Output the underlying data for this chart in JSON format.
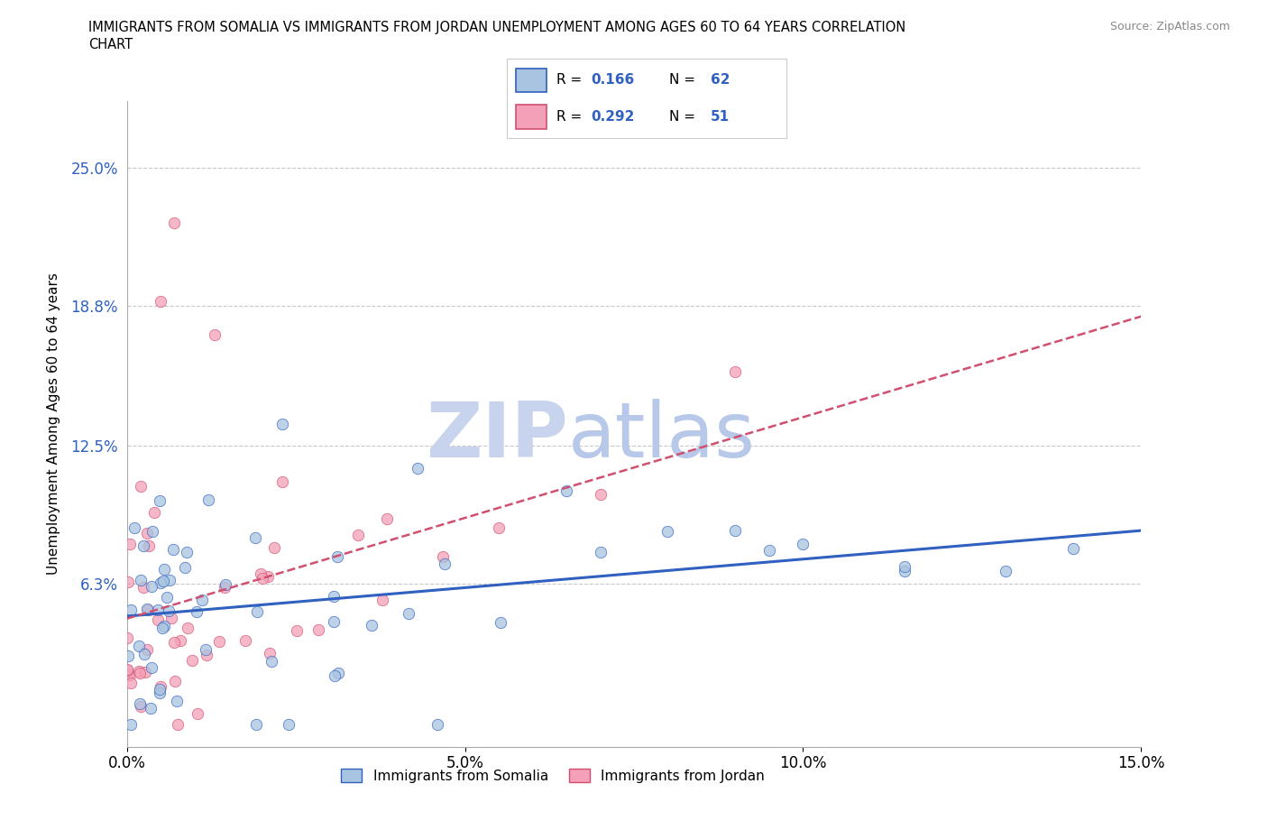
{
  "title_line1": "IMMIGRANTS FROM SOMALIA VS IMMIGRANTS FROM JORDAN UNEMPLOYMENT AMONG AGES 60 TO 64 YEARS CORRELATION",
  "title_line2": "CHART",
  "source": "Source: ZipAtlas.com",
  "ylabel": "Unemployment Among Ages 60 to 64 years",
  "xlim": [
    0.0,
    0.15
  ],
  "ylim": [
    -0.01,
    0.28
  ],
  "yticks": [
    0.063,
    0.125,
    0.188,
    0.25
  ],
  "ytick_labels": [
    "6.3%",
    "12.5%",
    "18.8%",
    "25.0%"
  ],
  "xticks": [
    0.0,
    0.05,
    0.1,
    0.15
  ],
  "xtick_labels": [
    "0.0%",
    "5.0%",
    "10.0%",
    "15.0%"
  ],
  "color_somalia": "#a8c4e0",
  "color_jordan": "#f4a0b8",
  "color_trend_somalia": "#3060c0",
  "color_trend_jordan": "#d05070",
  "watermark_zip": "ZIP",
  "watermark_atlas": "atlas",
  "watermark_color": "#d0ddf0",
  "legend_r1": "0.166",
  "legend_n1": "62",
  "legend_r2": "0.292",
  "legend_n2": "51"
}
